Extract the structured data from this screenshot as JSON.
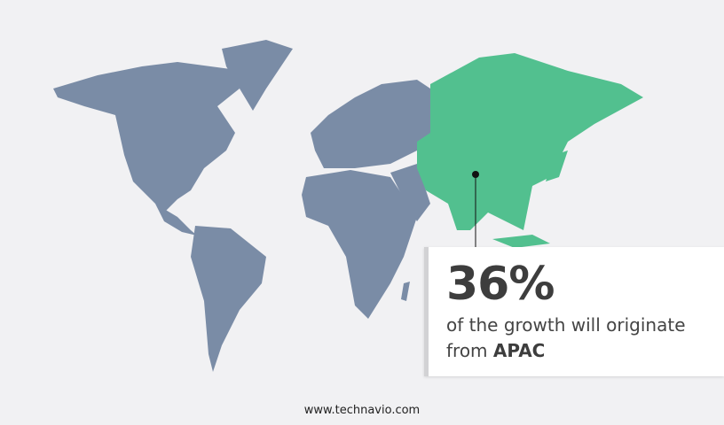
{
  "callout": {
    "percentage": "36%",
    "text": "of the growth will originate",
    "from_label": "from",
    "region": "APAC"
  },
  "footer": {
    "website": "www.technavio.com"
  },
  "colors": {
    "background": "#f1f1f3",
    "land": "#7a8ca6",
    "highlight_region": "#52c08f"
  },
  "map": {
    "highlighted_region": "APAC"
  }
}
